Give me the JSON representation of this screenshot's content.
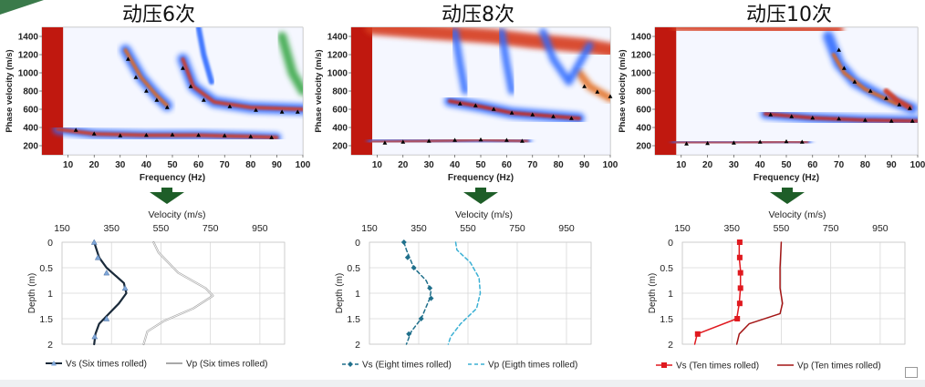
{
  "panels": [
    {
      "title": "动压6次"
    },
    {
      "title": "动压8次"
    },
    {
      "title": "动压10次"
    }
  ],
  "chart_data": [
    {
      "type": "heatmap",
      "subtype": "dispersion-image",
      "title": "动压6次",
      "xlabel": "Frequency (Hz)",
      "ylabel": "Phase velocity (m/s)",
      "xlim": [
        0,
        100
      ],
      "ylim": [
        100,
        1500
      ],
      "xticks": [
        10,
        20,
        30,
        40,
        50,
        60,
        70,
        80,
        90,
        100
      ],
      "yticks": [
        200,
        400,
        600,
        800,
        1000,
        1200,
        1400
      ],
      "picked_points": [
        {
          "x": 13,
          "y": 370
        },
        {
          "x": 20,
          "y": 330
        },
        {
          "x": 30,
          "y": 310
        },
        {
          "x": 40,
          "y": 315
        },
        {
          "x": 50,
          "y": 320
        },
        {
          "x": 60,
          "y": 315
        },
        {
          "x": 70,
          "y": 310
        },
        {
          "x": 80,
          "y": 300
        },
        {
          "x": 88,
          "y": 290
        },
        {
          "x": 33,
          "y": 1150
        },
        {
          "x": 36,
          "y": 950
        },
        {
          "x": 40,
          "y": 800
        },
        {
          "x": 44,
          "y": 700
        },
        {
          "x": 48,
          "y": 620
        },
        {
          "x": 54,
          "y": 1050
        },
        {
          "x": 57,
          "y": 850
        },
        {
          "x": 62,
          "y": 700
        },
        {
          "x": 72,
          "y": 630
        },
        {
          "x": 82,
          "y": 590
        },
        {
          "x": 92,
          "y": 570
        },
        {
          "x": 98,
          "y": 570
        }
      ]
    },
    {
      "type": "heatmap",
      "subtype": "dispersion-image",
      "title": "动压8次",
      "xlabel": "Frequency (Hz)",
      "ylabel": "Phase velocity (m/s)",
      "xlim": [
        0,
        100
      ],
      "ylim": [
        100,
        1500
      ],
      "xticks": [
        10,
        20,
        30,
        40,
        50,
        60,
        70,
        80,
        90,
        100
      ],
      "yticks": [
        200,
        400,
        600,
        800,
        1000,
        1200,
        1400
      ],
      "picked_points": [
        {
          "x": 13,
          "y": 230
        },
        {
          "x": 20,
          "y": 240
        },
        {
          "x": 30,
          "y": 250
        },
        {
          "x": 40,
          "y": 260
        },
        {
          "x": 50,
          "y": 265
        },
        {
          "x": 60,
          "y": 260
        },
        {
          "x": 66,
          "y": 250
        },
        {
          "x": 42,
          "y": 660
        },
        {
          "x": 48,
          "y": 640
        },
        {
          "x": 55,
          "y": 600
        },
        {
          "x": 62,
          "y": 560
        },
        {
          "x": 70,
          "y": 540
        },
        {
          "x": 78,
          "y": 520
        },
        {
          "x": 85,
          "y": 500
        },
        {
          "x": 90,
          "y": 850
        },
        {
          "x": 95,
          "y": 790
        },
        {
          "x": 100,
          "y": 740
        }
      ]
    },
    {
      "type": "heatmap",
      "subtype": "dispersion-image",
      "title": "动压10次",
      "xlabel": "Frequency (Hz)",
      "ylabel": "Phase velocity (m/s)",
      "xlim": [
        0,
        100
      ],
      "ylim": [
        100,
        1500
      ],
      "xticks": [
        10,
        20,
        30,
        40,
        50,
        60,
        70,
        80,
        90,
        100
      ],
      "yticks": [
        200,
        400,
        600,
        800,
        1000,
        1200,
        1400
      ],
      "picked_points": [
        {
          "x": 12,
          "y": 220
        },
        {
          "x": 20,
          "y": 225
        },
        {
          "x": 30,
          "y": 230
        },
        {
          "x": 40,
          "y": 240
        },
        {
          "x": 50,
          "y": 245
        },
        {
          "x": 56,
          "y": 240
        },
        {
          "x": 44,
          "y": 540
        },
        {
          "x": 52,
          "y": 520
        },
        {
          "x": 60,
          "y": 505
        },
        {
          "x": 70,
          "y": 495
        },
        {
          "x": 80,
          "y": 480
        },
        {
          "x": 90,
          "y": 470
        },
        {
          "x": 98,
          "y": 470
        },
        {
          "x": 70,
          "y": 1250
        },
        {
          "x": 72,
          "y": 1050
        },
        {
          "x": 76,
          "y": 900
        },
        {
          "x": 82,
          "y": 800
        },
        {
          "x": 88,
          "y": 720
        },
        {
          "x": 93,
          "y": 650
        },
        {
          "x": 97,
          "y": 610
        }
      ]
    },
    {
      "type": "line",
      "title": "",
      "xlabel": "Velocity (m/s)",
      "ylabel": "Depth (m)",
      "xlim": [
        150,
        1050
      ],
      "ylim": [
        0,
        2
      ],
      "xticks": [
        150,
        350,
        550,
        750,
        950
      ],
      "yticks": [
        0,
        0.5,
        1,
        1.5,
        2
      ],
      "series": [
        {
          "name": "Vs (Six times rolled)",
          "style": "solid",
          "color": "#1a2a3a",
          "marker": "triangle",
          "points": [
            [
              280,
              0
            ],
            [
              300,
              0.3
            ],
            [
              330,
              0.5
            ],
            [
              400,
              0.8
            ],
            [
              410,
              1.0
            ],
            [
              380,
              1.2
            ],
            [
              340,
              1.4
            ],
            [
              300,
              1.6
            ],
            [
              285,
              1.8
            ],
            [
              280,
              2.0
            ]
          ],
          "markers": [
            [
              280,
              0.0
            ],
            [
              295,
              0.3
            ],
            [
              330,
              0.6
            ],
            [
              405,
              0.9
            ],
            [
              330,
              1.5
            ],
            [
              282,
              1.85
            ]
          ]
        },
        {
          "name": "Vp (Six times rolled)",
          "style": "solid",
          "color": "#a8a8a8",
          "marker": "none",
          "points": [
            [
              520,
              0
            ],
            [
              540,
              0.2
            ],
            [
              620,
              0.6
            ],
            [
              730,
              0.9
            ],
            [
              760,
              1.05
            ],
            [
              680,
              1.3
            ],
            [
              560,
              1.55
            ],
            [
              495,
              1.75
            ],
            [
              480,
              2.0
            ]
          ]
        }
      ]
    },
    {
      "type": "line",
      "title": "",
      "xlabel": "Velocity (m/s)",
      "ylabel": "Depth (m)",
      "xlim": [
        150,
        1050
      ],
      "ylim": [
        0,
        2
      ],
      "xticks": [
        150,
        350,
        550,
        750,
        950
      ],
      "yticks": [
        0,
        0.5,
        1,
        1.5,
        2
      ],
      "series": [
        {
          "name": "Vs (Eight times rolled)",
          "style": "dashed",
          "color": "#1f6f8b",
          "marker": "diamond",
          "points": [
            [
              290,
              0
            ],
            [
              300,
              0.15
            ],
            [
              330,
              0.5
            ],
            [
              380,
              0.75
            ],
            [
              400,
              0.95
            ],
            [
              395,
              1.1
            ],
            [
              360,
              1.5
            ],
            [
              320,
              1.75
            ],
            [
              300,
              2.0
            ]
          ],
          "markers": [
            [
              290,
              0.0
            ],
            [
              305,
              0.3
            ],
            [
              330,
              0.5
            ],
            [
              395,
              0.9
            ],
            [
              400,
              1.1
            ],
            [
              360,
              1.5
            ],
            [
              310,
              1.8
            ]
          ]
        },
        {
          "name": "Vp (Eigth times rolled)",
          "style": "dashed",
          "color": "#3ab0d4",
          "marker": "none",
          "points": [
            [
              500,
              0
            ],
            [
              505,
              0.15
            ],
            [
              560,
              0.4
            ],
            [
              595,
              0.7
            ],
            [
              600,
              1.0
            ],
            [
              585,
              1.3
            ],
            [
              520,
              1.6
            ],
            [
              480,
              1.85
            ],
            [
              470,
              2.0
            ]
          ]
        }
      ]
    },
    {
      "type": "line",
      "title": "",
      "xlabel": "Velocity (m/s)",
      "ylabel": "Depth (m)",
      "xlim": [
        150,
        1050
      ],
      "ylim": [
        0,
        2
      ],
      "xticks": [
        150,
        350,
        550,
        750,
        950
      ],
      "yticks": [
        0,
        0.5,
        1,
        1.5,
        2
      ],
      "series": [
        {
          "name": "Vs (Ten times rolled)",
          "style": "solid",
          "color": "#e0191f",
          "marker": "square",
          "points": [
            [
              380,
              0
            ],
            [
              380,
              0.3
            ],
            [
              385,
              0.55
            ],
            [
              385,
              0.9
            ],
            [
              380,
              1.2
            ],
            [
              370,
              1.5
            ],
            [
              210,
              1.8
            ],
            [
              200,
              2.0
            ]
          ],
          "markers": [
            [
              382,
              0.0
            ],
            [
              382,
              0.3
            ],
            [
              385,
              0.6
            ],
            [
              385,
              0.9
            ],
            [
              382,
              1.2
            ],
            [
              372,
              1.5
            ],
            [
              212,
              1.8
            ]
          ]
        },
        {
          "name": "Vp (Ten times rolled)",
          "style": "solid",
          "color": "#a31515",
          "marker": "none",
          "points": [
            [
              550,
              0
            ],
            [
              545,
              0.5
            ],
            [
              545,
              0.9
            ],
            [
              555,
              1.2
            ],
            [
              545,
              1.4
            ],
            [
              420,
              1.6
            ],
            [
              380,
              1.8
            ],
            [
              370,
              2.0
            ]
          ]
        }
      ]
    }
  ],
  "colors": {
    "arrow": "#1e5e28",
    "grid": "#d8d8d8",
    "heat_low": "#ffffff",
    "heat_high": "#c0180f",
    "pick_marker": "#000000"
  }
}
